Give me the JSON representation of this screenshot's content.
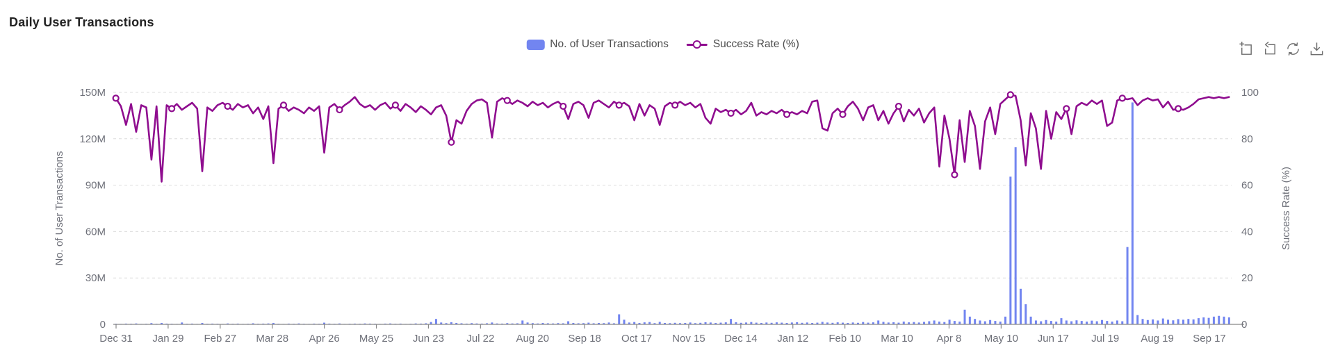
{
  "title": "Daily User Transactions",
  "legend": {
    "items": [
      {
        "label": "No. of User Transactions",
        "type": "bar",
        "color": "#7285f0"
      },
      {
        "label": "Success Rate (%)",
        "type": "line",
        "color": "#8f0d8f"
      }
    ]
  },
  "toolbar": {
    "buttons": [
      {
        "name": "area-zoom-icon",
        "action": "Area zoom"
      },
      {
        "name": "zoom-reset-icon",
        "action": "Zoom reset"
      },
      {
        "name": "refresh-icon",
        "action": "Restore"
      },
      {
        "name": "download-icon",
        "action": "Save as image"
      }
    ],
    "icon_color": "#6d6d6d"
  },
  "chart_data": {
    "type": "bar",
    "subtype": "dual-axis-bar-line-combo",
    "title": "Daily User Transactions",
    "n_points": 220,
    "x_tick_labels": [
      "Dec 31",
      "Jan 29",
      "Feb 27",
      "Mar 28",
      "Apr 26",
      "May 25",
      "Jun 23",
      "Jul 22",
      "Aug 20",
      "Sep 18",
      "Oct 17",
      "Nov 15",
      "Dec 14",
      "Jan 12",
      "Feb 10",
      "Mar 10",
      "Apr 8",
      "May 10",
      "Jun 17",
      "Jul 19",
      "Aug 19",
      "Sep 17"
    ],
    "y_left": {
      "label": "No. of User Transactions",
      "ticks": [
        "150M",
        "120M",
        "90M",
        "60M",
        "30M",
        "0"
      ],
      "range_millions": [
        0,
        150
      ]
    },
    "y_right": {
      "label": "Success Rate (%)",
      "ticks": [
        "100",
        "80",
        "60",
        "40",
        "20",
        "0"
      ],
      "range": [
        0,
        100
      ]
    },
    "grid": "horizontal-dashed",
    "legend_position": "top-center",
    "symbol_every": 11,
    "colors": {
      "bar": "#7285f0",
      "line": "#8f0d8f",
      "axis_text": "#6e7079",
      "grid_line": "#dcdcdc",
      "axis_line": "#888888"
    },
    "series": [
      {
        "name": "No. of User Transactions",
        "type": "bar",
        "axis": "left",
        "unit": "millions",
        "values": [
          0.4,
          0.3,
          0.5,
          0.4,
          0.6,
          0.3,
          0.4,
          0.8,
          0.4,
          0.9,
          0.5,
          0.4,
          0.3,
          1.2,
          0.4,
          0.5,
          0.3,
          0.9,
          0.4,
          0.5,
          0.4,
          0.3,
          0.6,
          0.4,
          0.5,
          0.3,
          0.4,
          0.7,
          0.4,
          0.5,
          0.6,
          0.9,
          0.4,
          0.3,
          0.5,
          0.4,
          0.6,
          0.4,
          0.3,
          0.5,
          0.4,
          1.1,
          0.5,
          0.4,
          0.6,
          0.3,
          0.4,
          0.5,
          0.4,
          0.6,
          0.5,
          0.4,
          0.3,
          0.5,
          0.6,
          0.4,
          0.5,
          0.3,
          0.4,
          0.6,
          0.5,
          0.7,
          1.5,
          3.5,
          1.2,
          0.8,
          1.4,
          0.9,
          0.7,
          0.5,
          0.8,
          0.6,
          0.5,
          0.7,
          1.2,
          0.6,
          0.5,
          0.8,
          0.6,
          0.7,
          2.5,
          1.2,
          0.8,
          0.6,
          0.9,
          0.7,
          0.6,
          0.8,
          0.7,
          2.0,
          0.9,
          0.7,
          0.8,
          1.1,
          0.7,
          0.9,
          0.8,
          1.2,
          0.7,
          6.5,
          3.0,
          1.2,
          1.5,
          0.9,
          1.3,
          1.5,
          0.8,
          1.6,
          0.9,
          0.8,
          1.0,
          0.8,
          0.9,
          1.2,
          0.8,
          1.0,
          1.4,
          1.2,
          0.9,
          1.1,
          1.3,
          3.5,
          1.4,
          1.0,
          1.2,
          1.5,
          1.1,
          0.9,
          1.2,
          1.0,
          1.3,
          1.1,
          0.9,
          1.2,
          1.4,
          1.0,
          1.2,
          0.9,
          1.1,
          1.6,
          1.2,
          1.0,
          1.3,
          1.1,
          0.9,
          1.2,
          1.0,
          1.5,
          1.1,
          1.3,
          2.5,
          1.6,
          1.2,
          1.4,
          1.1,
          1.8,
          1.3,
          1.5,
          1.2,
          1.6,
          2.0,
          2.5,
          1.8,
          1.5,
          3.0,
          2.2,
          1.8,
          9.5,
          5.0,
          3.5,
          2.5,
          2.0,
          2.8,
          2.2,
          1.8,
          5.0,
          95.5,
          114.5,
          23.0,
          13.0,
          5.0,
          2.5,
          2.0,
          2.8,
          2.2,
          1.8,
          4.0,
          2.5,
          2.0,
          2.6,
          2.2,
          1.8,
          2.4,
          2.0,
          2.8,
          2.2,
          1.8,
          2.5,
          2.0,
          50.0,
          143.5,
          6.0,
          3.5,
          2.8,
          3.2,
          2.5,
          3.8,
          3.0,
          2.6,
          3.4,
          3.0,
          3.5,
          3.2,
          4.0,
          4.5,
          4.2,
          5.0,
          5.5,
          5.0,
          4.5
        ]
      },
      {
        "name": "Success Rate (%)",
        "type": "line",
        "axis": "right",
        "unit": "percent",
        "values": [
          97.5,
          94,
          86,
          95,
          83,
          94.5,
          93.5,
          71,
          94,
          61.5,
          94.5,
          93,
          95,
          92.5,
          94,
          95.5,
          93,
          66,
          93.5,
          92,
          94.5,
          95.5,
          94,
          92.5,
          95,
          93.5,
          94.5,
          91,
          93.5,
          88.5,
          94,
          69.5,
          93,
          94.5,
          92,
          93.5,
          92.5,
          91,
          93.5,
          92,
          94,
          74,
          93.5,
          95,
          92.5,
          94.5,
          96,
          98,
          95,
          93.5,
          94.5,
          92.5,
          94.5,
          95.5,
          93,
          94.5,
          92,
          95,
          93.5,
          91.5,
          94,
          92.5,
          90.5,
          93.5,
          94.5,
          90,
          78.5,
          88,
          86.5,
          92,
          95,
          96.5,
          97,
          95.5,
          80.5,
          96,
          97.5,
          96.5,
          95,
          96.5,
          95.5,
          94,
          96,
          94.5,
          95.5,
          93.5,
          95,
          96,
          94,
          88.5,
          95,
          96,
          94.5,
          89,
          95.5,
          96.5,
          95,
          93.5,
          96,
          94.5,
          95.5,
          94,
          88,
          95,
          90,
          94.5,
          93,
          86,
          94,
          95.5,
          94.5,
          96,
          94.5,
          95.5,
          93.5,
          95,
          89,
          86.5,
          93,
          91.5,
          92.5,
          91,
          92.5,
          90.5,
          92,
          95.5,
          90,
          91.5,
          90.5,
          92,
          91,
          92.5,
          90.5,
          91.5,
          90.5,
          92,
          91,
          96,
          96.5,
          84.5,
          83.5,
          91,
          93,
          90.5,
          94,
          96,
          93,
          88,
          93.5,
          94.5,
          88,
          92,
          86.5,
          91,
          94,
          87.5,
          92.5,
          90,
          93,
          87,
          91,
          93.5,
          68,
          90,
          80,
          64.5,
          88,
          70,
          92,
          85.5,
          67,
          87.5,
          93.5,
          82,
          95,
          97,
          99,
          98.5,
          88,
          68.5,
          91,
          84.5,
          67,
          92,
          80,
          91.5,
          88.5,
          93,
          82,
          94,
          95.5,
          94.5,
          96.5,
          95,
          96.5,
          85.5,
          87,
          96.5,
          97.5,
          97,
          97.5,
          94.5,
          96.5,
          97.5,
          96.5,
          97,
          93.5,
          96,
          92.5,
          93,
          92.5,
          93.5,
          95,
          97,
          97.5,
          98,
          97.5,
          98,
          97.5,
          98
        ]
      }
    ]
  }
}
